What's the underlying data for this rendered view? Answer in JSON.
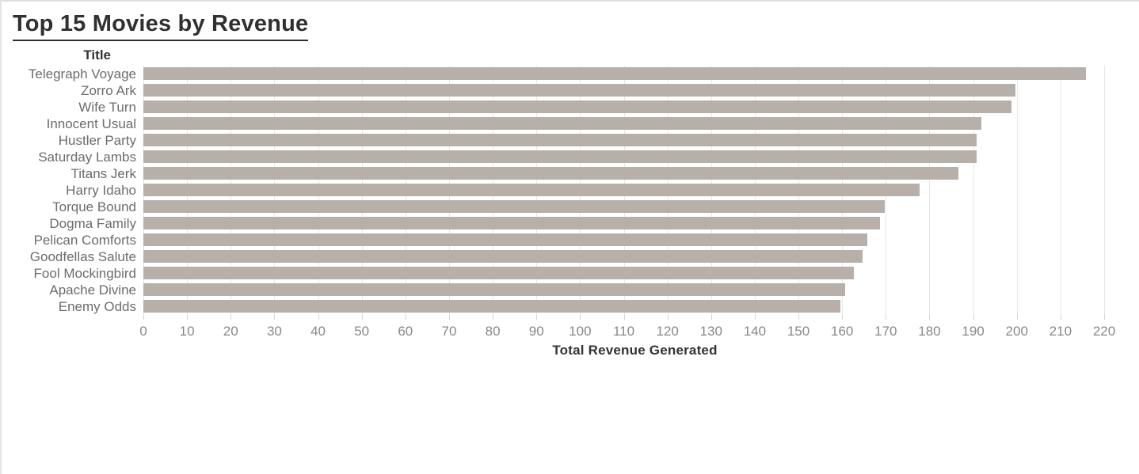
{
  "page": {
    "title": "Top 15 Movies by Revenue"
  },
  "chart": {
    "row_header_label": "Title",
    "row_header_sort_icon": "sort-descending-icon",
    "axis_title": "Total Revenue Generated",
    "axis_sort_icon": "sort-descending-icon"
  },
  "colors": {
    "bar": "#b7afaa",
    "gridline": "#eae7e4",
    "title_text": "#303030",
    "label_text": "#6e6b6a",
    "tick_text": "#8a8785"
  },
  "chart_data": {
    "type": "bar",
    "orientation": "horizontal",
    "title": "Top 15 Movies by Revenue",
    "categories": [
      "Telegraph Voyage",
      "Zorro Ark",
      "Wife Turn",
      "Innocent Usual",
      "Hustler Party",
      "Saturday Lambs",
      "Titans Jerk",
      "Harry Idaho",
      "Torque Bound",
      "Dogma Family",
      "Pelican Comforts",
      "Goodfellas Salute",
      "Fool Mockingbird",
      "Apache Divine",
      "Enemy Odds"
    ],
    "values": [
      215.75,
      199.72,
      198.73,
      191.81,
      190.78,
      190.74,
      186.71,
      177.73,
      169.76,
      168.72,
      165.73,
      164.67,
      162.67,
      160.68,
      159.67
    ],
    "category_axis_label": "Title",
    "value_axis_label": "Total Revenue Generated",
    "xlim": [
      0,
      228
    ],
    "x_ticks": [
      0,
      10,
      20,
      30,
      40,
      50,
      60,
      70,
      80,
      90,
      100,
      110,
      120,
      130,
      140,
      150,
      160,
      170,
      180,
      190,
      200,
      210,
      220
    ],
    "grid": true,
    "legend": false,
    "sort": "descending by value"
  }
}
